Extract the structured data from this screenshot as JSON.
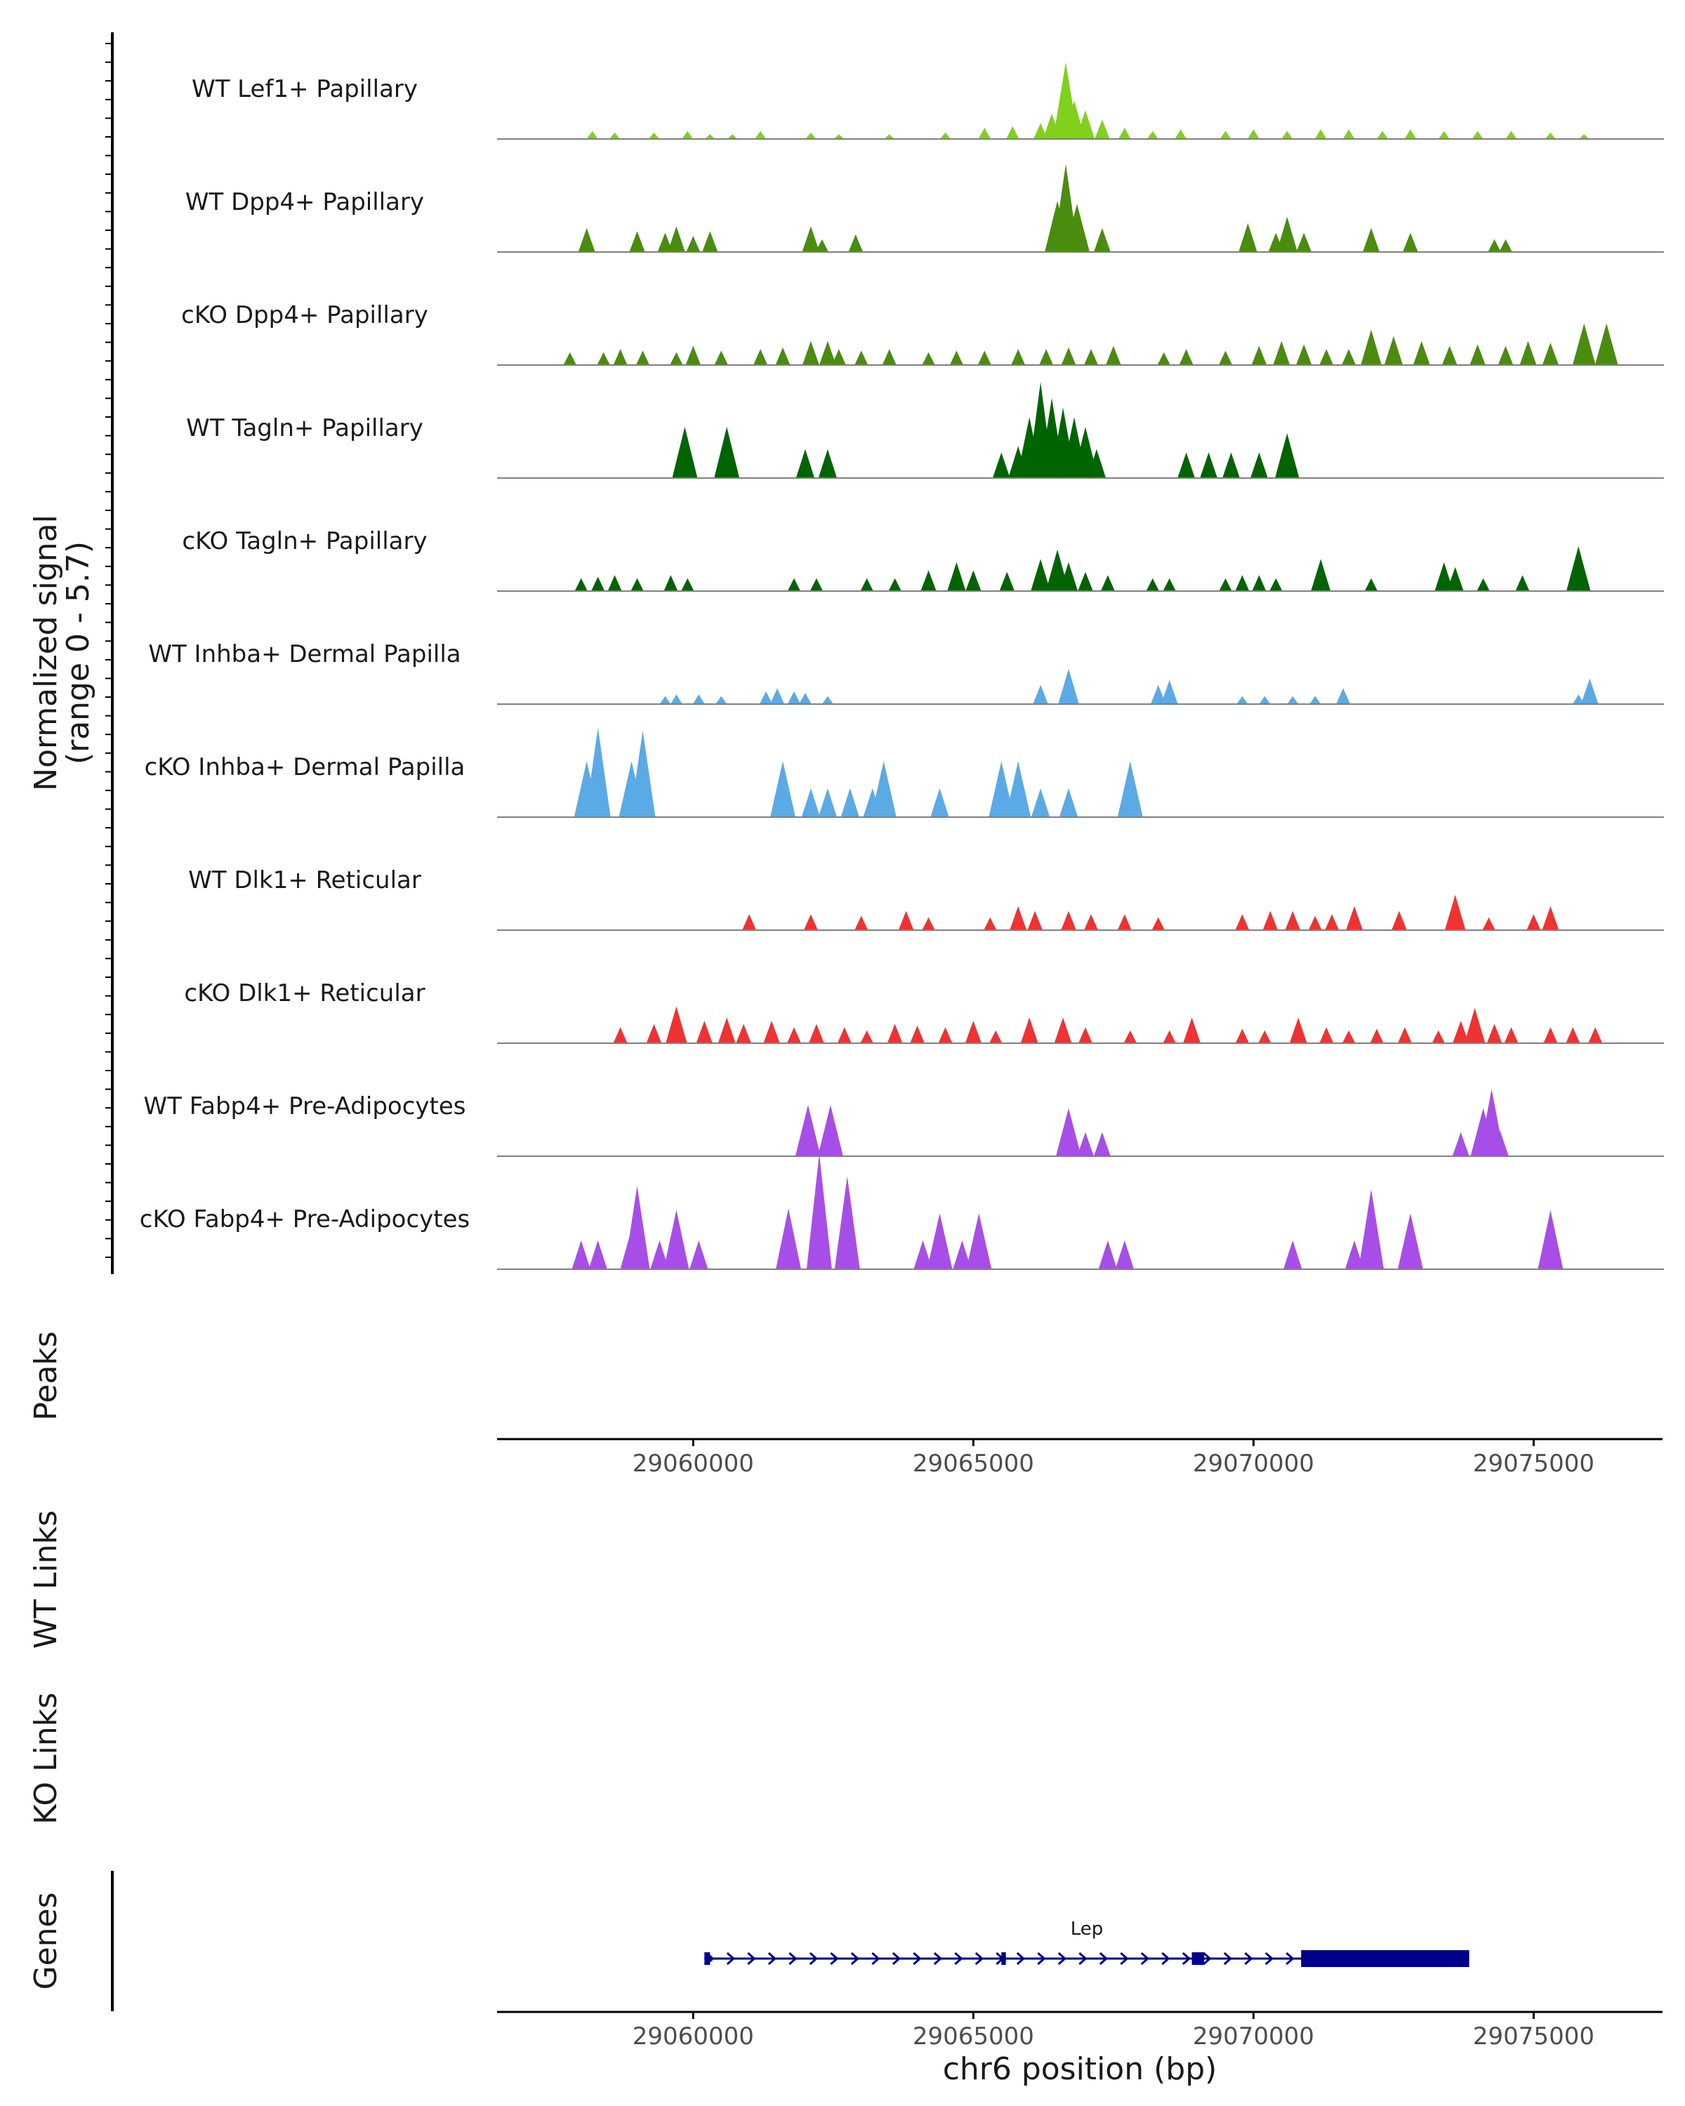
{
  "chart_data": {
    "type": "genome-coverage",
    "y_axis_title_line1": "Normalized signal",
    "y_axis_title_line2": "(range 0 - 5.7)",
    "y_range": [
      0,
      5.7
    ],
    "x_axis_title": "chr6 position (bp)",
    "x_range": [
      29056500,
      29077300
    ],
    "x_ticks": [
      29060000,
      29065000,
      29070000,
      29075000
    ],
    "x_tick_labels": [
      "29060000",
      "29065000",
      "29070000",
      "29075000"
    ],
    "tracks": [
      {
        "name": "WT Lef1+ Papillary",
        "color": "#7fd11c",
        "peaks": [
          [
            29058200,
            0.5
          ],
          [
            29058600,
            0.4
          ],
          [
            29059300,
            0.4
          ],
          [
            29059900,
            0.5
          ],
          [
            29060300,
            0.3
          ],
          [
            29060700,
            0.3
          ],
          [
            29061200,
            0.5
          ],
          [
            29062100,
            0.4
          ],
          [
            29062600,
            0.3
          ],
          [
            29063500,
            0.3
          ],
          [
            29064500,
            0.4
          ],
          [
            29065200,
            0.7
          ],
          [
            29065700,
            0.8
          ],
          [
            29066200,
            1.0
          ],
          [
            29066400,
            1.6
          ],
          [
            29066650,
            4.8
          ],
          [
            29066800,
            2.4
          ],
          [
            29067000,
            1.8
          ],
          [
            29067300,
            1.2
          ],
          [
            29067700,
            0.7
          ],
          [
            29068200,
            0.5
          ],
          [
            29068700,
            0.6
          ],
          [
            29069500,
            0.5
          ],
          [
            29070000,
            0.6
          ],
          [
            29070600,
            0.5
          ],
          [
            29071200,
            0.6
          ],
          [
            29071700,
            0.6
          ],
          [
            29072300,
            0.5
          ],
          [
            29072800,
            0.6
          ],
          [
            29073400,
            0.5
          ],
          [
            29074000,
            0.5
          ],
          [
            29074600,
            0.5
          ],
          [
            29075300,
            0.4
          ],
          [
            29075900,
            0.3
          ]
        ]
      },
      {
        "name": "WT Dpp4+ Papillary",
        "color": "#4a8c0d",
        "peaks": [
          [
            29058100,
            1.5
          ],
          [
            29059000,
            1.3
          ],
          [
            29059500,
            1.2
          ],
          [
            29059700,
            1.6
          ],
          [
            29060000,
            1.0
          ],
          [
            29060300,
            1.3
          ],
          [
            29062100,
            1.6
          ],
          [
            29062300,
            0.8
          ],
          [
            29062900,
            1.1
          ],
          [
            29066500,
            3.2
          ],
          [
            29066650,
            5.5
          ],
          [
            29066850,
            3.0
          ],
          [
            29067300,
            1.5
          ],
          [
            29069900,
            1.8
          ],
          [
            29070400,
            1.2
          ],
          [
            29070600,
            2.2
          ],
          [
            29070900,
            1.2
          ],
          [
            29072100,
            1.5
          ],
          [
            29072800,
            1.2
          ],
          [
            29074300,
            0.8
          ],
          [
            29074500,
            0.8
          ]
        ]
      },
      {
        "name": "cKO Dpp4+ Papillary",
        "color": "#4a8c0d",
        "peaks": [
          [
            29057800,
            0.8
          ],
          [
            29058400,
            0.8
          ],
          [
            29058700,
            1.0
          ],
          [
            29059100,
            0.9
          ],
          [
            29059700,
            0.8
          ],
          [
            29060000,
            1.2
          ],
          [
            29060500,
            0.9
          ],
          [
            29061200,
            1.0
          ],
          [
            29061600,
            1.1
          ],
          [
            29062100,
            1.5
          ],
          [
            29062400,
            1.5
          ],
          [
            29062600,
            1.0
          ],
          [
            29063000,
            0.9
          ],
          [
            29063500,
            1.0
          ],
          [
            29064200,
            0.8
          ],
          [
            29064700,
            0.9
          ],
          [
            29065200,
            0.9
          ],
          [
            29065800,
            1.0
          ],
          [
            29066300,
            1.0
          ],
          [
            29066700,
            1.1
          ],
          [
            29067100,
            1.0
          ],
          [
            29067500,
            1.2
          ],
          [
            29068400,
            0.8
          ],
          [
            29068800,
            1.0
          ],
          [
            29069500,
            0.9
          ],
          [
            29070100,
            1.2
          ],
          [
            29070500,
            1.5
          ],
          [
            29070900,
            1.3
          ],
          [
            29071300,
            1.0
          ],
          [
            29071700,
            1.0
          ],
          [
            29072100,
            2.2
          ],
          [
            29072500,
            1.8
          ],
          [
            29073000,
            1.5
          ],
          [
            29073500,
            1.2
          ],
          [
            29074000,
            1.3
          ],
          [
            29074500,
            1.2
          ],
          [
            29074900,
            1.5
          ],
          [
            29075300,
            1.4
          ],
          [
            29075900,
            2.6
          ],
          [
            29076300,
            2.6
          ]
        ]
      },
      {
        "name": "WT Tagln+ Papillary",
        "color": "#006400",
        "peaks": [
          [
            29059850,
            3.2
          ],
          [
            29060600,
            3.2
          ],
          [
            29062000,
            1.8
          ],
          [
            29062400,
            1.8
          ],
          [
            29065500,
            1.6
          ],
          [
            29065800,
            2.0
          ],
          [
            29066000,
            3.8
          ],
          [
            29066200,
            6.0
          ],
          [
            29066400,
            5.0
          ],
          [
            29066600,
            4.4
          ],
          [
            29066800,
            3.8
          ],
          [
            29067000,
            3.2
          ],
          [
            29067200,
            1.8
          ],
          [
            29068800,
            1.6
          ],
          [
            29069200,
            1.6
          ],
          [
            29069600,
            1.6
          ],
          [
            29070100,
            1.6
          ],
          [
            29070600,
            2.8
          ]
        ]
      },
      {
        "name": "cKO Tagln+ Papillary",
        "color": "#006400",
        "peaks": [
          [
            29058000,
            0.8
          ],
          [
            29058300,
            0.9
          ],
          [
            29058600,
            1.0
          ],
          [
            29059000,
            0.8
          ],
          [
            29059600,
            1.0
          ],
          [
            29059900,
            0.8
          ],
          [
            29061800,
            0.8
          ],
          [
            29062200,
            0.8
          ],
          [
            29063100,
            0.8
          ],
          [
            29063600,
            0.8
          ],
          [
            29064200,
            1.3
          ],
          [
            29064700,
            1.8
          ],
          [
            29065000,
            1.3
          ],
          [
            29065600,
            1.2
          ],
          [
            29066200,
            2.0
          ],
          [
            29066500,
            2.6
          ],
          [
            29066700,
            1.8
          ],
          [
            29067000,
            1.2
          ],
          [
            29067400,
            1.0
          ],
          [
            29068200,
            0.8
          ],
          [
            29068500,
            0.8
          ],
          [
            29069500,
            0.8
          ],
          [
            29069800,
            1.0
          ],
          [
            29070100,
            1.0
          ],
          [
            29070400,
            0.8
          ],
          [
            29071200,
            2.0
          ],
          [
            29072100,
            0.8
          ],
          [
            29073400,
            1.8
          ],
          [
            29073600,
            1.5
          ],
          [
            29074100,
            0.8
          ],
          [
            29074800,
            1.0
          ],
          [
            29075800,
            2.8
          ]
        ]
      },
      {
        "name": "WT Inhba+ Dermal Papilla",
        "color": "#5aaae6",
        "peaks": [
          [
            29059500,
            0.5
          ],
          [
            29059700,
            0.6
          ],
          [
            29060100,
            0.6
          ],
          [
            29060500,
            0.5
          ],
          [
            29061300,
            0.8
          ],
          [
            29061500,
            1.0
          ],
          [
            29061800,
            0.8
          ],
          [
            29062000,
            0.7
          ],
          [
            29062400,
            0.5
          ],
          [
            29066200,
            1.2
          ],
          [
            29066700,
            2.2
          ],
          [
            29068300,
            1.2
          ],
          [
            29068500,
            1.5
          ],
          [
            29069800,
            0.5
          ],
          [
            29070200,
            0.5
          ],
          [
            29070700,
            0.5
          ],
          [
            29071100,
            0.5
          ],
          [
            29071600,
            1.0
          ],
          [
            29075800,
            0.6
          ],
          [
            29076000,
            1.6
          ]
        ]
      },
      {
        "name": "cKO Inhba+ Dermal Papilla",
        "color": "#5aaae6",
        "peaks": [
          [
            29058100,
            3.5
          ],
          [
            29058300,
            5.6
          ],
          [
            29058900,
            3.5
          ],
          [
            29059100,
            5.4
          ],
          [
            29061600,
            3.5
          ],
          [
            29062100,
            1.8
          ],
          [
            29062400,
            1.8
          ],
          [
            29062800,
            1.8
          ],
          [
            29063200,
            1.8
          ],
          [
            29063400,
            3.5
          ],
          [
            29064400,
            1.8
          ],
          [
            29065500,
            3.5
          ],
          [
            29065800,
            3.5
          ],
          [
            29066200,
            1.8
          ],
          [
            29066700,
            1.8
          ],
          [
            29067800,
            3.5
          ]
        ]
      },
      {
        "name": "WT Dlk1+ Reticular",
        "color": "#f03232",
        "peaks": [
          [
            29061000,
            1.0
          ],
          [
            29062100,
            1.0
          ],
          [
            29063000,
            0.9
          ],
          [
            29063800,
            1.2
          ],
          [
            29064200,
            0.8
          ],
          [
            29065300,
            0.8
          ],
          [
            29065800,
            1.5
          ],
          [
            29066100,
            1.2
          ],
          [
            29066700,
            1.2
          ],
          [
            29067100,
            1.0
          ],
          [
            29067700,
            1.0
          ],
          [
            29068300,
            0.8
          ],
          [
            29069800,
            1.0
          ],
          [
            29070300,
            1.2
          ],
          [
            29070700,
            1.2
          ],
          [
            29071100,
            0.9
          ],
          [
            29071400,
            1.0
          ],
          [
            29071800,
            1.5
          ],
          [
            29072600,
            1.2
          ],
          [
            29073600,
            2.2
          ],
          [
            29074200,
            0.8
          ],
          [
            29075000,
            1.0
          ],
          [
            29075300,
            1.5
          ]
        ]
      },
      {
        "name": "cKO Dlk1+ Reticular",
        "color": "#f03232",
        "peaks": [
          [
            29058700,
            1.0
          ],
          [
            29059300,
            1.2
          ],
          [
            29059700,
            2.3
          ],
          [
            29060200,
            1.4
          ],
          [
            29060600,
            1.6
          ],
          [
            29060900,
            1.2
          ],
          [
            29061400,
            1.4
          ],
          [
            29061800,
            1.0
          ],
          [
            29062200,
            1.2
          ],
          [
            29062700,
            1.0
          ],
          [
            29063100,
            0.8
          ],
          [
            29063600,
            1.2
          ],
          [
            29064000,
            1.1
          ],
          [
            29064500,
            1.0
          ],
          [
            29065000,
            1.4
          ],
          [
            29065400,
            0.8
          ],
          [
            29066000,
            1.6
          ],
          [
            29066600,
            1.6
          ],
          [
            29067000,
            1.0
          ],
          [
            29067800,
            0.8
          ],
          [
            29068500,
            0.8
          ],
          [
            29068900,
            1.6
          ],
          [
            29069800,
            0.9
          ],
          [
            29070200,
            0.8
          ],
          [
            29070800,
            1.6
          ],
          [
            29071300,
            1.0
          ],
          [
            29071700,
            0.8
          ],
          [
            29072200,
            0.9
          ],
          [
            29072700,
            1.0
          ],
          [
            29073300,
            0.8
          ],
          [
            29073700,
            1.4
          ],
          [
            29073950,
            2.2
          ],
          [
            29074300,
            1.2
          ],
          [
            29074600,
            1.0
          ],
          [
            29075300,
            1.0
          ],
          [
            29075700,
            1.0
          ],
          [
            29076100,
            1.0
          ]
        ]
      },
      {
        "name": "WT Fabp4+ Pre-Adipocytes",
        "color": "#a84ee8",
        "peaks": [
          [
            29062050,
            3.2
          ],
          [
            29062450,
            3.2
          ],
          [
            29066700,
            3.0
          ],
          [
            29067000,
            1.5
          ],
          [
            29067300,
            1.5
          ],
          [
            29073700,
            1.5
          ],
          [
            29074100,
            3.0
          ],
          [
            29074250,
            4.2
          ],
          [
            29074400,
            1.6
          ]
        ]
      },
      {
        "name": "cKO Fabp4+ Pre-Adipocytes",
        "color": "#a84ee8",
        "peaks": [
          [
            29058000,
            1.8
          ],
          [
            29058300,
            1.8
          ],
          [
            29058900,
            2.5
          ],
          [
            29059000,
            5.2
          ],
          [
            29059400,
            1.8
          ],
          [
            29059700,
            3.7
          ],
          [
            29060100,
            1.8
          ],
          [
            29061700,
            3.8
          ],
          [
            29062250,
            7.2
          ],
          [
            29062750,
            5.8
          ],
          [
            29064100,
            1.8
          ],
          [
            29064400,
            3.5
          ],
          [
            29064800,
            1.8
          ],
          [
            29065100,
            3.5
          ],
          [
            29067400,
            1.8
          ],
          [
            29067700,
            1.8
          ],
          [
            29070700,
            1.8
          ],
          [
            29071800,
            1.8
          ],
          [
            29072100,
            5.0
          ],
          [
            29072800,
            3.5
          ],
          [
            29075300,
            3.7
          ]
        ]
      }
    ],
    "peaks_track_label": "Peaks",
    "wt_links_label": "WT Links",
    "ko_links_label": "KO Links",
    "genes_label": "Genes",
    "gene": {
      "name": "Lep",
      "start": 29060200,
      "end": 29073850,
      "strand": "+",
      "exons": [
        [
          29060200,
          29060300
        ],
        [
          29065500,
          29065580
        ],
        [
          29068900,
          29069120
        ],
        [
          29070850,
          29073850
        ]
      ]
    }
  }
}
